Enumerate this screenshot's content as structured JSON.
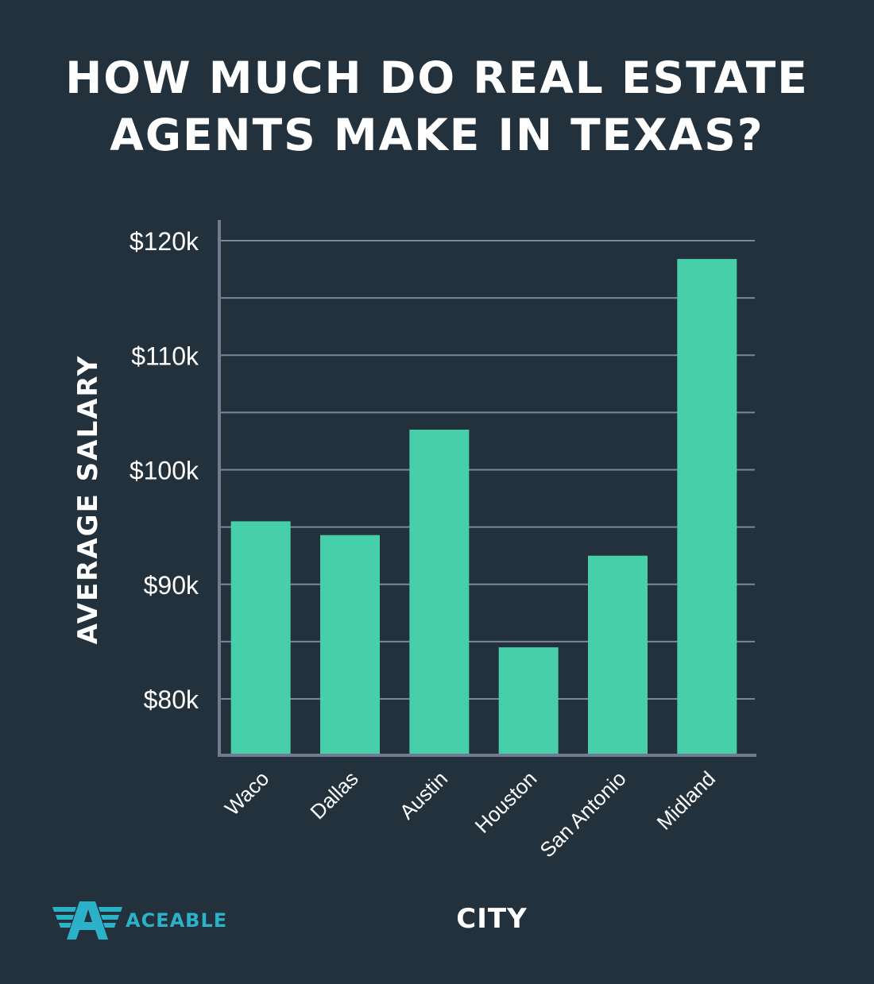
{
  "title_lines": [
    "HOW MUCH DO REAL ESTATE",
    "AGENTS MAKE IN TEXAS?"
  ],
  "chart_data": {
    "type": "bar",
    "title": "HOW MUCH DO REAL ESTATE AGENTS MAKE IN TEXAS?",
    "xlabel": "CITY",
    "ylabel": "AVERAGE SALARY",
    "categories": [
      "Waco",
      "Dallas",
      "Austin",
      "Houston",
      "San Antonio",
      "Midland"
    ],
    "values": [
      95500,
      94300,
      103500,
      84500,
      92500,
      118400
    ],
    "ylim": [
      75000,
      122000
    ],
    "yticks": [
      80000,
      90000,
      100000,
      110000,
      120000
    ],
    "ytick_labels": [
      "$80k",
      "$90k",
      "$100k",
      "$110k",
      "$120k"
    ],
    "minor_gridlines": [
      85000,
      95000,
      105000,
      115000
    ],
    "grid": true,
    "legend": "none",
    "colors": {
      "bar": "#47cfaa",
      "background": "#22313c",
      "grid": "#7c879a",
      "axis": "#727c90",
      "text": "#ffffff"
    }
  },
  "logo": {
    "text": "ACEABLE",
    "icon": "aceable-winged-a-icon",
    "color": "#2bb2c8"
  }
}
